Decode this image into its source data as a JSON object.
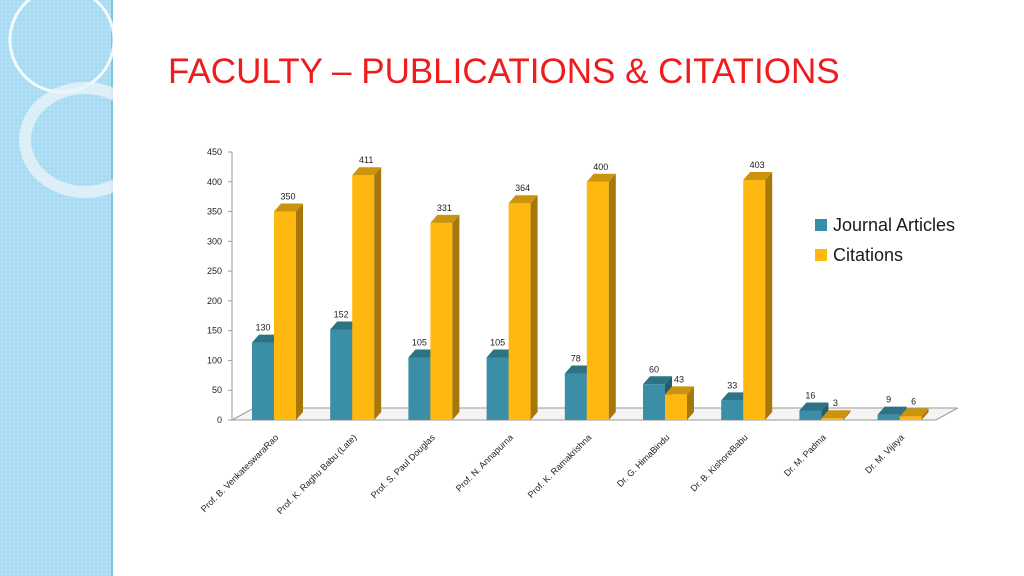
{
  "slide": {
    "title": "FACULTY – PUBLICATIONS & CITATIONS"
  },
  "colors": {
    "journal": "#3a8ea6",
    "citations": "#ffb80f",
    "title": "#ee1c1c",
    "panel": "#a8daf2"
  },
  "chart_data": {
    "type": "bar",
    "categories": [
      "Prof. B. VenkateswaraRao",
      "Prof. K. Raghu Babu (Late)",
      "Prof. S. Paul Douglas",
      "Prof. N. Annapurna",
      "Prof. K. Ramakrishna",
      "Dr. G. HimaBindu",
      "Dr. B. KishoreBabu",
      "Dr. M. Padma",
      "Dr. M. Vijaya"
    ],
    "series": [
      {
        "name": "Journal Articles",
        "values": [
          130,
          152,
          105,
          105,
          78,
          60,
          33,
          16,
          9
        ]
      },
      {
        "name": "Citations",
        "values": [
          350,
          411,
          331,
          364,
          400,
          43,
          403,
          3,
          6
        ]
      }
    ],
    "yticks": [
      0,
      50,
      100,
      150,
      200,
      250,
      300,
      350,
      400,
      450
    ],
    "ylim": [
      0,
      450
    ],
    "legend_position": "right",
    "grid": false,
    "style": "3d-clustered-column"
  }
}
